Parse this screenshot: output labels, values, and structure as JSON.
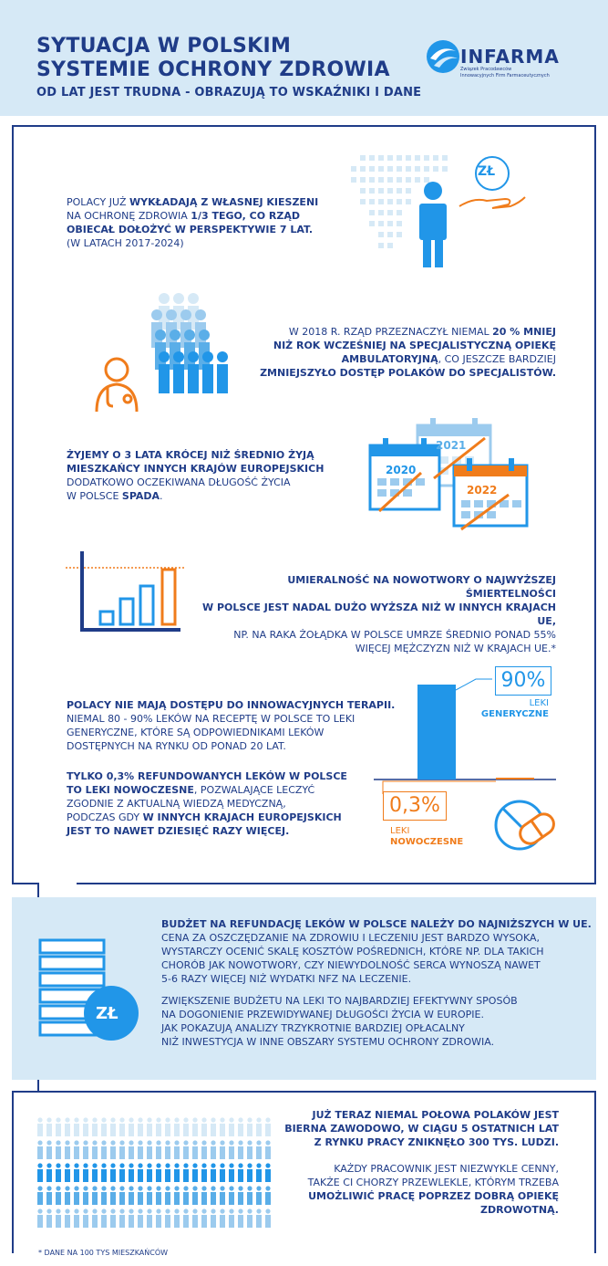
{
  "header": {
    "title_line1": "SYTUACJA W POLSKIM",
    "title_line2": "SYSTEMIE OCHRONY ZDROWIA",
    "subtitle": "OD LAT JEST TRUDNA - OBRAZUJĄ TO WSKAŹNIKI I DANE",
    "logo_word": "INFARMA",
    "logo_sub_line1": "Związek Pracodawców",
    "logo_sub_line2": "Innowacyjnych Firm Farmaceutycznych"
  },
  "section1": {
    "l1_a": "POLACY JUŻ ",
    "l1_b": "WYKŁADAJĄ Z WŁASNEJ KIESZENI",
    "l2_a": "NA OCHRONĘ ZDROWIA ",
    "l2_b": "1/3 TEGO, CO RZĄD",
    "l3": "OBIECAŁ DOŁOŻYĆ W PERSPEKTYWIE 7 LAT.",
    "l4": "(W LATACH 2017-2024)",
    "coin_label": "ZŁ"
  },
  "section2": {
    "l1_a": "W 2018 R. RZĄD PRZEZNACZYŁ NIEMAL ",
    "l1_b": "20 % MNIEJ",
    "l2": "NIŻ ROK WCZEŚNIEJ NA SPECJALISTYCZNĄ OPIEKĘ",
    "l3_a": "AMBULATORYJNĄ",
    "l3_b": ", CO JESZCZE BARDZIEJ",
    "l4": "ZMNIEJSZYŁO DOSTĘP POLAKÓW DO SPECJALISTÓW."
  },
  "section3": {
    "l1": "ŻYJEMY O 3 LATA KRÓCEJ NIŻ ŚREDNIO ŻYJĄ",
    "l2": "MIESZKAŃCY INNYCH KRAJÓW EUROPEJSKICH",
    "l3": "DODATKOWO OCZEKIWANA DŁUGOŚĆ ŻYCIA",
    "l4_a": "W POLSCE ",
    "l4_b": "SPADA",
    "l4_c": ".",
    "year1": "2020",
    "year2": "2021",
    "year3": "2022"
  },
  "section4": {
    "l1": "UMIERALNOŚĆ NA NOWOTWORY O NAJWYŻSZEJ ŚMIERTELNOŚCI",
    "l2": "W POLSCE JEST NADAL DUŻO WYŻSZA NIŻ W INNYCH KRAJACH UE,",
    "l3": "NP. NA RAKA ŻOŁĄDKA W POLSCE UMRZE ŚREDNIO PONAD 55%",
    "l4": "WIĘCEJ MĘŻCZYZN NIŻ W KRAJACH UE.*"
  },
  "section5": {
    "p1_l1": "POLACY NIE MAJĄ DOSTĘPU DO INNOWACYJNYCH TERAPII.",
    "p1_l2": "NIEMAL 80 - 90% LEKÓW  NA RECEPTĘ W POLSCE TO LEKI",
    "p1_l3": "GENERYCZNE, KTÓRE SĄ ODPOWIEDNIKAMI LEKÓW",
    "p1_l4": "DOSTĘPNYCH NA RYNKU OD PONAD 20 LAT.",
    "p2_l1": "TYLKO 0,3% REFUNDOWANYCH LEKÓW W POLSCE",
    "p2_l2_a": "TO LEKI NOWOCZESNE",
    "p2_l2_b": ", POZWALAJĄCE LECZYĆ",
    "p2_l3": "ZGODNIE Z AKTUALNĄ WIEDZĄ MEDYCZNĄ,",
    "p2_l4_a": "PODCZAS GDY ",
    "p2_l4_b": "W INNYCH KRAJACH EUROPEJSKICH",
    "p2_l5": "JEST TO NAWET DZIESIĘĆ RAZY WIĘCEJ.",
    "generic_pct": "90%",
    "generic_label1": "LEKI",
    "generic_label2": "GENERYCZNE",
    "modern_pct": "0,3%",
    "modern_label1": "LEKI",
    "modern_label2": "NOWOCZESNE",
    "generic_value": 90,
    "modern_value": 0.3
  },
  "budget": {
    "l1": "BUDŻET NA REFUNDACJĘ LEKÓW W POLSCE NALEŻY DO NAJNIŻSZYCH W UE.",
    "l2": "CENA ZA OSZCZĘDZANIE NA ZDROWIU I LECZENIU JEST BARDZO WYSOKA,",
    "l3": "WYSTARCZY OCENIĆ SKALĘ  KOSZTÓW POŚREDNICH, KTÓRE NP. DLA TAKICH",
    "l4": "CHORÓB JAK NOWOTWORY, CZY NIEWYDOLNOŚĆ SERCA WYNOSZĄ NAWET",
    "l5": "5-6 RAZY WIĘCEJ NIŻ WYDATKI NFZ NA LECZENIE.",
    "l6": "ZWIĘKSZENIE BUDŻETU NA LEKI TO NAJBARDZIEJ EFEKTYWNY SPOSÓB",
    "l7": "NA DOGONIENIE PRZEWIDYWANEJ DŁUGOŚCI ŻYCIA W EUROPIE.",
    "l8": "JAK POKAZUJĄ ANALIZY TRZYKROTNIE BARDZIEJ OPŁACALNY",
    "l9": "NIŻ INWESTYCJA W INNE OBSZARY SYSTEMU OCHRONY ZDROWIA.",
    "coin_label": "ZŁ"
  },
  "section6": {
    "l1": "JUŻ TERAZ NIEMAL POŁOWA POLAKÓW JEST",
    "l2": "BIERNA ZAWODOWO, W CIĄGU 5 OSTATNICH LAT",
    "l3": "Z RYNKU PRACY ZNIKNĘŁO 300 TYS. LUDZI.",
    "l4": "KAŻDY PRACOWNIK JEST NIEZWYKLE CENNY,",
    "l5": "TAKŻE CI CHORZY PRZEWLEKLE, KTÓRYM TRZEBA",
    "l6_a": "UMOŻLIWIĆ PRACĘ POPRZEZ DOBRĄ OPIEKĘ",
    "l7": "ZDROWOTNĄ."
  },
  "footnote": "* DANE NA 100 TYS MIESZKAŃCÓW",
  "colors": {
    "navy": "#1f3c88",
    "blue": "#2196e8",
    "light_blue": "#d6e9f6",
    "orange": "#f07c1b"
  }
}
